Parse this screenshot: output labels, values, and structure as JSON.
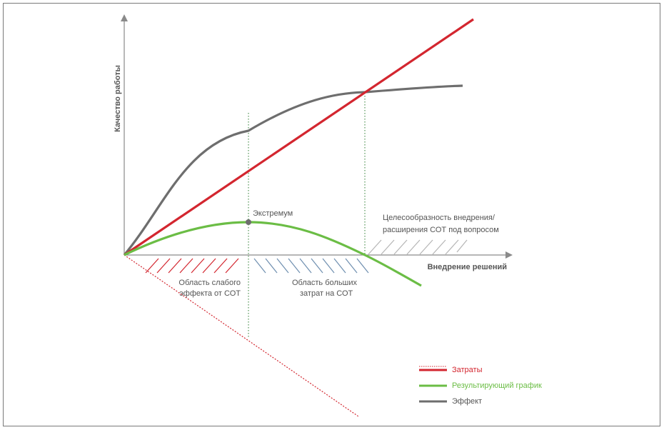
{
  "axes": {
    "y_label": "Качество работы",
    "x_label": "Внедрение решений"
  },
  "annotations": {
    "extremum": "Экстремум",
    "expediency_line1": "Целесообразность внедрения/",
    "expediency_line2": "расширения СОТ под вопросом",
    "weak_area_line1": "Область слабого",
    "weak_area_line2": "эффекта от СОТ",
    "cost_area_line1": "Область больших",
    "cost_area_line2": "затрат на СОТ"
  },
  "legend": {
    "items": [
      {
        "label": "Затраты",
        "color": "#d3262f"
      },
      {
        "label": "Результирующий график",
        "color": "#6bbd45"
      },
      {
        "label": "Эффект",
        "color": "#6e6e6e"
      }
    ]
  },
  "colors": {
    "cost": "#d3262f",
    "result": "#6bbd45",
    "effect": "#6e6e6e",
    "axis": "#8a8a8a",
    "hatch_weak": "#d3262f",
    "hatch_cost": "#6f8fb0",
    "hatch_gray": "#b5b5b5",
    "guide": "#2e7d32"
  }
}
